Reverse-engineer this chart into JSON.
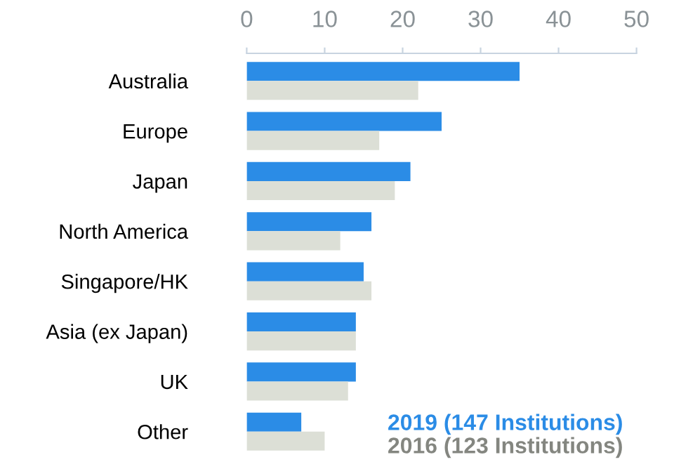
{
  "chart_data": {
    "type": "bar",
    "orientation": "horizontal",
    "categories": [
      "Australia",
      "Europe",
      "Japan",
      "North America",
      "Singapore/HK",
      "Asia (ex Japan)",
      "UK",
      "Other"
    ],
    "series": [
      {
        "name": "2019 (147 Institutions)",
        "color": "#2b8ce6",
        "values": [
          35,
          25,
          21,
          16,
          15,
          14,
          14,
          7
        ]
      },
      {
        "name": "2016 (123 Institutions)",
        "color": "#dcdfd6",
        "values": [
          22,
          17,
          19,
          12,
          16,
          14,
          13,
          10
        ]
      }
    ],
    "xlim": [
      0,
      50
    ],
    "xticks": [
      0,
      10,
      20,
      30,
      40,
      50
    ],
    "grid": false,
    "legend": "bottom right"
  }
}
